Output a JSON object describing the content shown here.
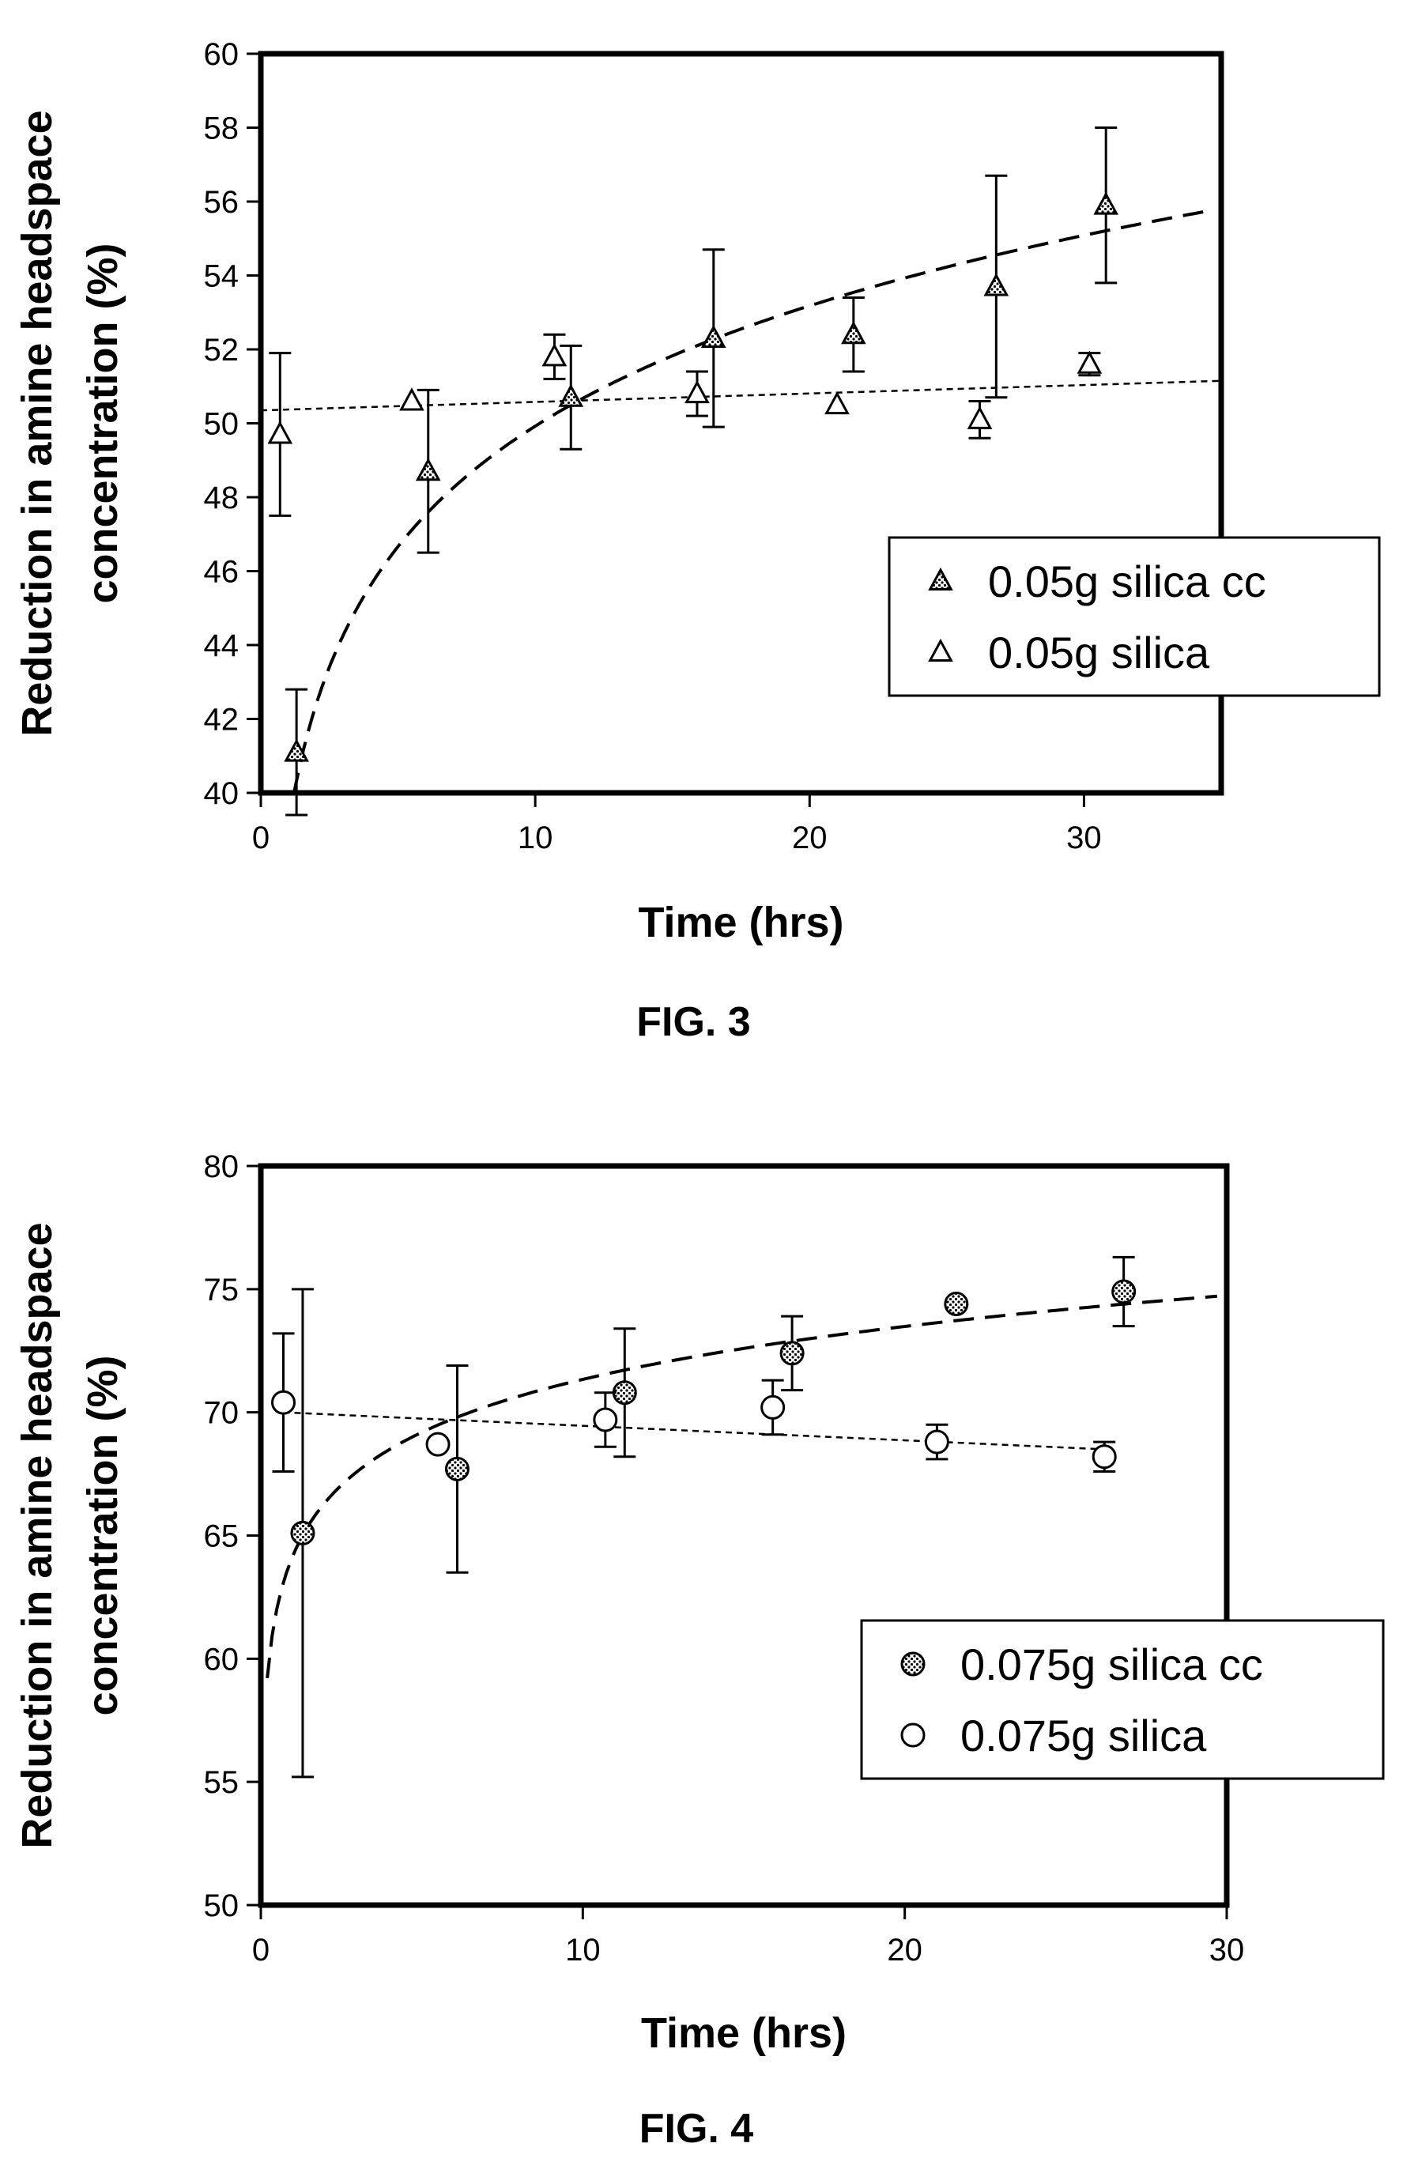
{
  "chart_data": [
    {
      "type": "scatter",
      "caption": "FIG. 3",
      "xlabel": "Time (hrs)",
      "ylabel_line1": "Reduction in amine headspace",
      "ylabel_line2": "concentration (%)",
      "xlim": [
        0,
        35
      ],
      "ylim": [
        40,
        60
      ],
      "xticks": [
        0,
        10,
        20,
        30
      ],
      "yticks": [
        40,
        42,
        44,
        46,
        48,
        50,
        52,
        54,
        56,
        58,
        60
      ],
      "legend_position": "center-right",
      "series": [
        {
          "name": "0.05g silica cc",
          "marker": "triangle-filled",
          "trend": "log-dashed",
          "trend_fit": {
            "a": 39.1,
            "b": 4.7
          },
          "points": [
            {
              "x": 1.3,
              "y": 41.1,
              "err": 1.7
            },
            {
              "x": 6.1,
              "y": 48.7,
              "err": 2.2
            },
            {
              "x": 11.3,
              "y": 50.7,
              "err": 1.4
            },
            {
              "x": 16.5,
              "y": 52.3,
              "err": 2.4
            },
            {
              "x": 21.6,
              "y": 52.4,
              "err": 1.0
            },
            {
              "x": 26.8,
              "y": 53.7,
              "err": 3.0
            },
            {
              "x": 30.8,
              "y": 55.9,
              "err": 2.1
            }
          ]
        },
        {
          "name": "0.05g silica",
          "marker": "triangle-open",
          "trend": "linear-dotted",
          "trend_fit": {
            "x0": 0,
            "y0": 50.35,
            "x1": 35,
            "y1": 51.15
          },
          "points": [
            {
              "x": 0.7,
              "y": 49.7,
              "err": 2.2
            },
            {
              "x": 5.5,
              "y": 50.6,
              "err": 0
            },
            {
              "x": 10.7,
              "y": 51.8,
              "err": 0.6
            },
            {
              "x": 15.9,
              "y": 50.8,
              "err": 0.6
            },
            {
              "x": 21.0,
              "y": 50.5,
              "err": 0
            },
            {
              "x": 26.2,
              "y": 50.1,
              "err": 0.5
            },
            {
              "x": 30.2,
              "y": 51.6,
              "err": 0.3
            }
          ]
        }
      ]
    },
    {
      "type": "scatter",
      "caption": "FIG. 4",
      "xlabel": "Time (hrs)",
      "ylabel_line1": "Reduction in amine headspace",
      "ylabel_line2": "concentration (%)",
      "xlim": [
        0,
        30
      ],
      "ylim": [
        50,
        80
      ],
      "xticks": [
        0,
        10,
        20,
        30
      ],
      "yticks": [
        50,
        55,
        60,
        65,
        70,
        75,
        80
      ],
      "legend_position": "center-right",
      "series": [
        {
          "name": "0.075g silica cc",
          "marker": "circle-filled",
          "trend": "log-dashed",
          "trend_fit": {
            "a": 64.2,
            "b": 3.1
          },
          "points": [
            {
              "x": 1.3,
              "y": 65.1,
              "err": 9.9
            },
            {
              "x": 6.1,
              "y": 67.7,
              "err": 4.2
            },
            {
              "x": 11.3,
              "y": 70.8,
              "err": 2.6
            },
            {
              "x": 16.5,
              "y": 72.4,
              "err": 1.5
            },
            {
              "x": 21.6,
              "y": 74.4,
              "err": 0
            },
            {
              "x": 26.8,
              "y": 74.9,
              "err": 1.4
            }
          ]
        },
        {
          "name": "0.075g silica",
          "marker": "circle-open",
          "trend": "linear-dotted",
          "trend_fit": {
            "x0": 0.7,
            "y0": 70.0,
            "x1": 26.2,
            "y1": 68.5
          },
          "points": [
            {
              "x": 0.7,
              "y": 70.4,
              "err": 2.8
            },
            {
              "x": 5.5,
              "y": 68.7,
              "err": 0
            },
            {
              "x": 10.7,
              "y": 69.7,
              "err": 1.1
            },
            {
              "x": 15.9,
              "y": 70.2,
              "err": 1.1
            },
            {
              "x": 21.0,
              "y": 68.8,
              "err": 0.7
            },
            {
              "x": 26.2,
              "y": 68.2,
              "err": 0.6
            }
          ]
        }
      ]
    }
  ]
}
